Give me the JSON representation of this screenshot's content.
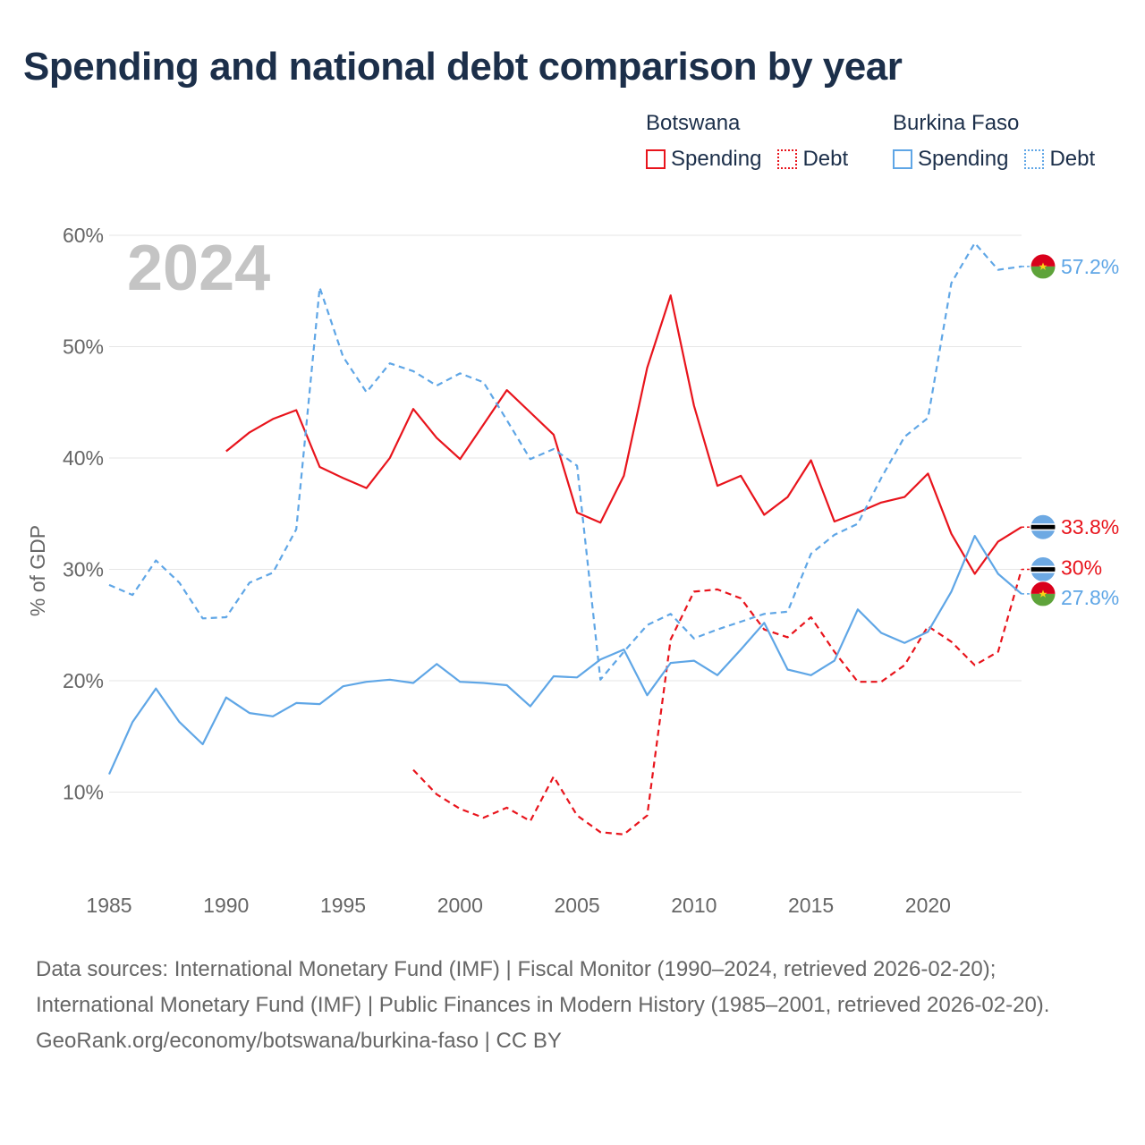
{
  "title": "Spending and national debt comparison by year",
  "legend": {
    "groups": [
      {
        "country": "Botswana",
        "color": "#e8141c",
        "items": [
          "Spending",
          "Debt"
        ]
      },
      {
        "country": "Burkina Faso",
        "color": "#5fa6e6",
        "items": [
          "Spending",
          "Debt"
        ]
      }
    ]
  },
  "chart_data": {
    "type": "line",
    "year_label": "2024",
    "ylabel": "% of GDP",
    "xlim": [
      1985,
      2024
    ],
    "ylim": [
      0,
      60
    ],
    "yticks": [
      10,
      20,
      30,
      40,
      50,
      60
    ],
    "ytick_labels": [
      "10%",
      "20%",
      "30%",
      "40%",
      "50%",
      "60%"
    ],
    "xticks": [
      1985,
      1990,
      1995,
      2000,
      2005,
      2010,
      2015,
      2020
    ],
    "xtick_labels": [
      "1985",
      "1990",
      "1995",
      "2000",
      "2005",
      "2010",
      "2015",
      "2020"
    ],
    "series": [
      {
        "name": "Botswana Spending",
        "country": "Botswana",
        "metric": "Spending",
        "color": "#e8141c",
        "dash": false,
        "end_label": "33.8%",
        "flag": "botswana",
        "x": [
          1990,
          1991,
          1992,
          1993,
          1994,
          1995,
          1996,
          1997,
          1998,
          1999,
          2000,
          2001,
          2002,
          2003,
          2004,
          2005,
          2006,
          2007,
          2008,
          2009,
          2010,
          2011,
          2012,
          2013,
          2014,
          2015,
          2016,
          2017,
          2018,
          2019,
          2020,
          2021,
          2022,
          2023,
          2024
        ],
        "values": [
          40.6,
          42.3,
          43.5,
          44.3,
          39.2,
          38.2,
          37.3,
          40.0,
          44.4,
          41.8,
          39.9,
          43.0,
          46.1,
          44.1,
          42.1,
          35.1,
          34.2,
          38.4,
          48.1,
          54.6,
          44.7,
          37.5,
          38.4,
          34.9,
          36.5,
          39.8,
          34.3,
          35.1,
          36.0,
          36.5,
          38.6,
          33.2,
          29.6,
          32.5,
          33.8
        ]
      },
      {
        "name": "Botswana Debt",
        "country": "Botswana",
        "metric": "Debt",
        "color": "#e8141c",
        "dash": true,
        "end_label": "30%",
        "flag": "botswana",
        "x": [
          1998,
          1999,
          2000,
          2001,
          2002,
          2003,
          2004,
          2005,
          2006,
          2007,
          2008,
          2009,
          2010,
          2011,
          2012,
          2013,
          2014,
          2015,
          2016,
          2017,
          2018,
          2019,
          2020,
          2021,
          2022,
          2023,
          2024
        ],
        "values": [
          12.0,
          9.8,
          8.5,
          7.7,
          8.6,
          7.4,
          11.4,
          7.9,
          6.4,
          6.2,
          7.9,
          23.7,
          28.0,
          28.2,
          27.4,
          24.6,
          23.9,
          25.7,
          22.6,
          19.9,
          19.9,
          21.4,
          24.9,
          23.5,
          21.4,
          22.6,
          30.0
        ]
      },
      {
        "name": "Burkina Faso Spending",
        "country": "Burkina Faso",
        "metric": "Spending",
        "color": "#5fa6e6",
        "dash": false,
        "end_label": "27.8%",
        "flag": "burkina-faso",
        "x": [
          1985,
          1986,
          1987,
          1988,
          1989,
          1990,
          1991,
          1992,
          1993,
          1994,
          1995,
          1996,
          1997,
          1998,
          1999,
          2000,
          2001,
          2002,
          2003,
          2004,
          2005,
          2006,
          2007,
          2008,
          2009,
          2010,
          2011,
          2012,
          2013,
          2014,
          2015,
          2016,
          2017,
          2018,
          2019,
          2020,
          2021,
          2022,
          2023,
          2024
        ],
        "values": [
          11.6,
          16.3,
          19.3,
          16.3,
          14.3,
          18.5,
          17.1,
          16.8,
          18.0,
          17.9,
          19.5,
          19.9,
          20.1,
          19.8,
          21.5,
          19.9,
          19.8,
          19.6,
          17.7,
          20.4,
          20.3,
          21.9,
          22.8,
          18.7,
          21.6,
          21.8,
          20.5,
          22.8,
          25.2,
          21.0,
          20.5,
          21.8,
          26.4,
          24.3,
          23.4,
          24.4,
          28.0,
          33.0,
          29.6,
          27.8
        ]
      },
      {
        "name": "Burkina Faso Debt",
        "country": "Burkina Faso",
        "metric": "Debt",
        "color": "#5fa6e6",
        "dash": true,
        "end_label": "57.2%",
        "flag": "burkina-faso",
        "x": [
          1985,
          1986,
          1987,
          1988,
          1989,
          1990,
          1991,
          1992,
          1993,
          1994,
          1995,
          1996,
          1997,
          1998,
          1999,
          2000,
          2001,
          2002,
          2003,
          2004,
          2005,
          2006,
          2007,
          2008,
          2009,
          2010,
          2011,
          2012,
          2013,
          2014,
          2015,
          2016,
          2017,
          2018,
          2019,
          2020,
          2021,
          2022,
          2023,
          2024
        ],
        "values": [
          28.6,
          27.7,
          30.8,
          28.8,
          25.6,
          25.7,
          28.8,
          29.7,
          33.6,
          55.3,
          49.1,
          45.9,
          48.5,
          47.8,
          46.5,
          47.6,
          46.8,
          43.4,
          39.9,
          40.8,
          39.3,
          20.1,
          22.6,
          25.0,
          26.0,
          23.8,
          24.6,
          25.3,
          26.0,
          26.2,
          31.4,
          33.1,
          34.1,
          38.2,
          41.9,
          43.6,
          55.7,
          59.3,
          56.9,
          57.2
        ]
      }
    ]
  },
  "footer": {
    "sources": "Data sources: International Monetary Fund (IMF) | Fiscal Monitor (1990–2024, retrieved 2026-02-20); International Monetary Fund (IMF) | Public Finances in Modern History (1985–2001, retrieved 2026-02-20).",
    "credit": "GeoRank.org/economy/botswana/burkina-faso | CC BY"
  }
}
